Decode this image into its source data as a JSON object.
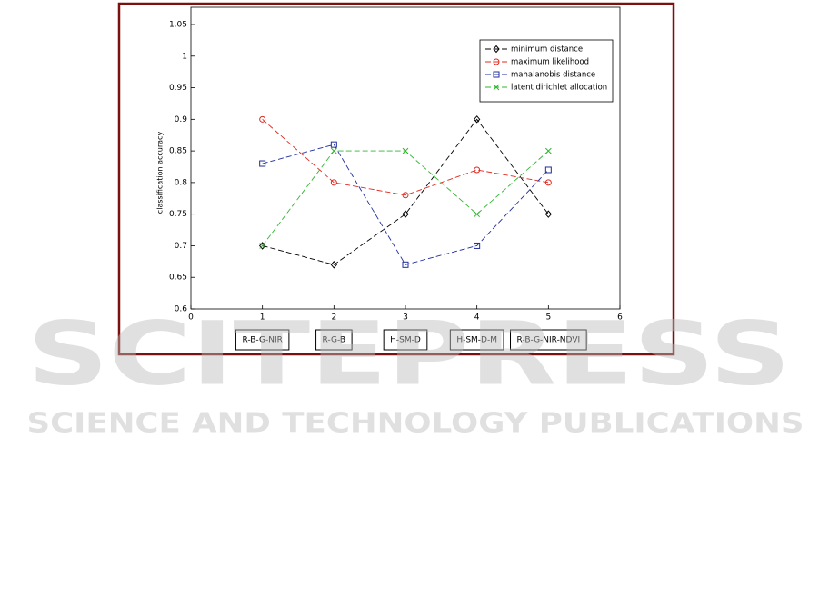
{
  "chart_data": {
    "type": "line",
    "y_label": "classification accuracy",
    "x": [
      1,
      2,
      3,
      4,
      5
    ],
    "categories": [
      "R-B-G-NIR",
      "R-G-B",
      "H-SM-D",
      "H-SM-D-M",
      "R-B-G-NIR-NDVI"
    ],
    "xlim": [
      0,
      6
    ],
    "xticks": [
      0,
      1,
      2,
      3,
      4,
      5,
      6
    ],
    "ylim": [
      0.6,
      1.05
    ],
    "yticks": [
      0.6,
      0.65,
      0.7,
      0.75,
      0.8,
      0.85,
      0.9,
      0.95,
      1,
      1.05
    ],
    "legend": "top-right",
    "series": [
      {
        "name": "minimum distance",
        "color": "#000000",
        "marker": "diamond",
        "values": [
          0.7,
          0.67,
          0.75,
          0.9,
          0.75
        ]
      },
      {
        "name": "maximum likelihood",
        "color": "#e0281e",
        "marker": "circle",
        "values": [
          0.9,
          0.8,
          0.78,
          0.82,
          0.8
        ]
      },
      {
        "name": "mahalanobis distance",
        "color": "#1f2d9c",
        "marker": "square",
        "values": [
          0.83,
          0.86,
          0.67,
          0.7,
          0.82
        ]
      },
      {
        "name": "latent dirichlet allocation",
        "color": "#2fb62f",
        "marker": "x",
        "values": [
          0.7,
          0.85,
          0.85,
          0.75,
          0.85
        ]
      }
    ]
  },
  "watermark": {
    "title": "SCITEPRESS",
    "subtitle": "SCIENCE AND TECHNOLOGY PUBLICATIONS"
  }
}
